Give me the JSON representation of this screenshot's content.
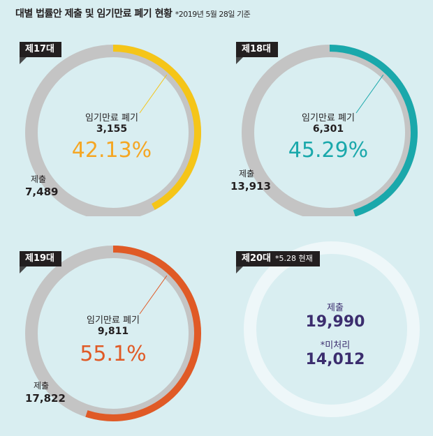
{
  "title": {
    "main": "대별 법률안 제출 및 임기만료 폐기 현황",
    "note": "*2019년 5월 28일 기준"
  },
  "chart_data": [
    {
      "type": "pie",
      "session": "제17대",
      "submitted_label": "제출",
      "submitted": 7489,
      "submitted_text": "7,489",
      "discarded_label": "임기만료 폐기",
      "discarded": 3155,
      "discarded_text": "3,155",
      "percent": 42.13,
      "percent_text": "42.13%",
      "color": "#f5c518"
    },
    {
      "type": "pie",
      "session": "제18대",
      "submitted_label": "제출",
      "submitted": 13913,
      "submitted_text": "13,913",
      "discarded_label": "임기만료 폐기",
      "discarded": 6301,
      "discarded_text": "6,301",
      "percent": 45.29,
      "percent_text": "45.29%",
      "color": "#1aa8ab"
    },
    {
      "type": "pie",
      "session": "제19대",
      "submitted_label": "제출",
      "submitted": 17822,
      "submitted_text": "17,822",
      "discarded_label": "임기만료 폐기",
      "discarded": 9811,
      "discarded_text": "9,811",
      "percent": 55.1,
      "percent_text": "55.1%",
      "color": "#e05a26"
    },
    {
      "type": "pie",
      "session": "제20대",
      "session_note": "*5.28 현재",
      "submitted_label": "제출",
      "submitted": 19990,
      "submitted_text": "19,990",
      "pending_label": "*미처리",
      "pending": 14012,
      "pending_text": "14,012",
      "color": "#eef7f9"
    }
  ],
  "colors": {
    "ring": "#c4c4c4",
    "text": "#231f20",
    "accent20": "#3b2d6e",
    "pct17": "#f5a623",
    "pct18": "#1aa8ab",
    "pct19": "#e05a26"
  }
}
